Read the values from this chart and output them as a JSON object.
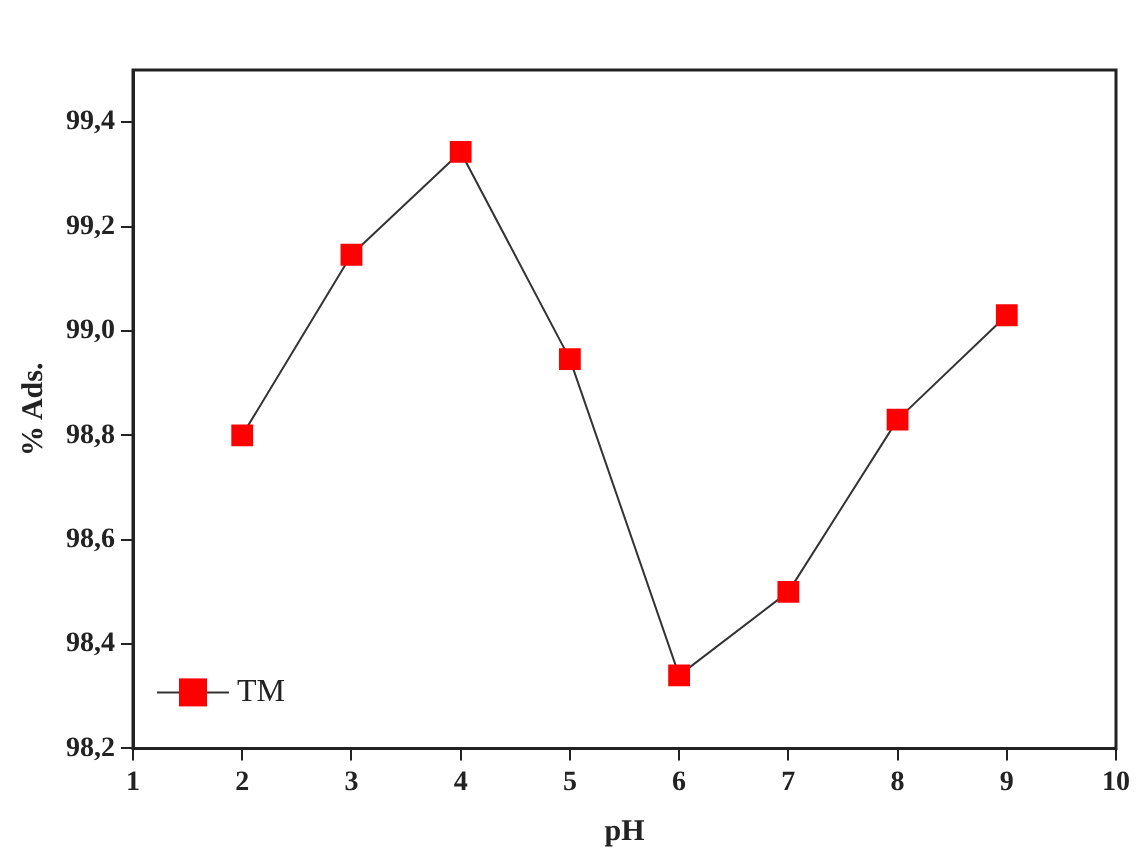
{
  "chart_data": {
    "type": "line",
    "xlabel": "pH",
    "ylabel": "% Ads.",
    "x": [
      2,
      3,
      4,
      5,
      6,
      7,
      8,
      9
    ],
    "series": [
      {
        "name": "TM",
        "color": "#ff0000",
        "values": [
          98.8,
          99.146,
          99.343,
          98.946,
          98.34,
          98.5,
          98.83,
          99.03
        ]
      }
    ],
    "xlim": [
      1,
      10
    ],
    "xticks": [
      1,
      2,
      3,
      4,
      5,
      6,
      7,
      8,
      9,
      10
    ],
    "ylim": [
      98.2,
      99.5
    ],
    "yticks": [
      {
        "value": 98.2,
        "label": "98,2"
      },
      {
        "value": 98.4,
        "label": "98,4"
      },
      {
        "value": 98.6,
        "label": "98,6"
      },
      {
        "value": 98.8,
        "label": "98,8"
      },
      {
        "value": 99.0,
        "label": "99,0"
      },
      {
        "value": 99.2,
        "label": "99,2"
      },
      {
        "value": 99.4,
        "label": "99,4"
      }
    ],
    "marker": "square",
    "line_style": "solid",
    "grid": false,
    "legend": "bottom left"
  }
}
